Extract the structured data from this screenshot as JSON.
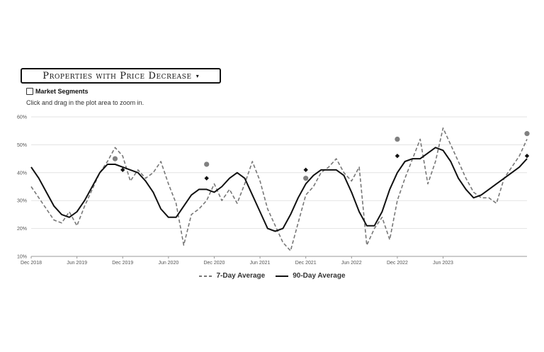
{
  "selector": {
    "label": "Properties with Price Decrease",
    "caret": "▾"
  },
  "segments": {
    "label": "Market Segments",
    "checked": false
  },
  "hint": "Click and drag in the plot area to zoom in.",
  "chart_data": {
    "type": "line",
    "title": "",
    "xlabel": "",
    "ylabel": "",
    "ylim": [
      10,
      60
    ],
    "yticks": [
      "10%",
      "20%",
      "30%",
      "40%",
      "50%",
      "60%"
    ],
    "xlim": [
      "2018-12",
      "2024-01"
    ],
    "xticks": [
      "Dec 2018",
      "Jun 2019",
      "Dec 2019",
      "Jun 2020",
      "Dec 2020",
      "Jun 2021",
      "Dec 2021",
      "Jun 2022",
      "Dec 2022",
      "Jun 2023"
    ],
    "grid": true,
    "legend_position": "bottom-center",
    "series": [
      {
        "name": "7-Day Average",
        "style": "dashed",
        "color": "#777777",
        "points": [
          [
            "2018-12",
            35
          ],
          [
            "2019-01",
            31
          ],
          [
            "2019-02",
            27
          ],
          [
            "2019-03",
            23
          ],
          [
            "2019-04",
            22
          ],
          [
            "2019-05",
            26
          ],
          [
            "2019-06",
            21
          ],
          [
            "2019-07",
            28
          ],
          [
            "2019-08",
            34
          ],
          [
            "2019-09",
            40
          ],
          [
            "2019-10",
            44
          ],
          [
            "2019-11",
            49
          ],
          [
            "2019-12",
            46
          ],
          [
            "2020-01",
            37
          ],
          [
            "2020-02",
            41
          ],
          [
            "2020-03",
            38
          ],
          [
            "2020-04",
            40
          ],
          [
            "2020-05",
            44
          ],
          [
            "2020-06",
            36
          ],
          [
            "2020-07",
            29
          ],
          [
            "2020-08",
            14
          ],
          [
            "2020-09",
            25
          ],
          [
            "2020-10",
            27
          ],
          [
            "2020-11",
            30
          ],
          [
            "2020-12",
            36
          ],
          [
            "2021-01",
            30
          ],
          [
            "2021-02",
            34
          ],
          [
            "2021-03",
            29
          ],
          [
            "2021-04",
            36
          ],
          [
            "2021-05",
            44
          ],
          [
            "2021-06",
            37
          ],
          [
            "2021-07",
            27
          ],
          [
            "2021-08",
            21
          ],
          [
            "2021-09",
            15
          ],
          [
            "2021-10",
            12
          ],
          [
            "2021-11",
            22
          ],
          [
            "2021-12",
            32
          ],
          [
            "2022-01",
            35
          ],
          [
            "2022-02",
            40
          ],
          [
            "2022-03",
            42
          ],
          [
            "2022-04",
            45
          ],
          [
            "2022-05",
            40
          ],
          [
            "2022-06",
            37
          ],
          [
            "2022-07",
            42
          ],
          [
            "2022-08",
            14
          ],
          [
            "2022-09",
            20
          ],
          [
            "2022-10",
            24
          ],
          [
            "2022-11",
            16
          ],
          [
            "2022-12",
            30
          ],
          [
            "2023-01",
            38
          ],
          [
            "2023-02",
            45
          ],
          [
            "2023-03",
            52
          ],
          [
            "2023-04",
            36
          ],
          [
            "2023-05",
            44
          ],
          [
            "2023-06",
            56
          ],
          [
            "2023-07",
            50
          ],
          [
            "2023-08",
            44
          ],
          [
            "2023-09",
            38
          ],
          [
            "2023-10",
            33
          ],
          [
            "2023-11",
            31
          ],
          [
            "2023-12",
            31
          ],
          [
            "2024-01",
            29
          ],
          [
            "2024-02",
            38
          ],
          [
            "2024-03",
            42
          ],
          [
            "2024-04",
            46
          ],
          [
            "2024-05",
            52
          ]
        ]
      },
      {
        "name": "90-Day Average",
        "style": "solid",
        "color": "#111111",
        "points": [
          [
            "2018-12",
            42
          ],
          [
            "2019-01",
            38
          ],
          [
            "2019-02",
            33
          ],
          [
            "2019-03",
            28
          ],
          [
            "2019-04",
            25
          ],
          [
            "2019-05",
            24
          ],
          [
            "2019-06",
            26
          ],
          [
            "2019-07",
            30
          ],
          [
            "2019-08",
            35
          ],
          [
            "2019-09",
            40
          ],
          [
            "2019-10",
            43
          ],
          [
            "2019-11",
            43
          ],
          [
            "2019-12",
            42
          ],
          [
            "2020-01",
            41
          ],
          [
            "2020-02",
            40
          ],
          [
            "2020-03",
            37
          ],
          [
            "2020-04",
            33
          ],
          [
            "2020-05",
            27
          ],
          [
            "2020-06",
            24
          ],
          [
            "2020-07",
            24
          ],
          [
            "2020-08",
            28
          ],
          [
            "2020-09",
            32
          ],
          [
            "2020-10",
            34
          ],
          [
            "2020-11",
            34
          ],
          [
            "2020-12",
            33
          ],
          [
            "2021-01",
            35
          ],
          [
            "2021-02",
            38
          ],
          [
            "2021-03",
            40
          ],
          [
            "2021-04",
            38
          ],
          [
            "2021-05",
            32
          ],
          [
            "2021-06",
            26
          ],
          [
            "2021-07",
            20
          ],
          [
            "2021-08",
            19
          ],
          [
            "2021-09",
            20
          ],
          [
            "2021-10",
            25
          ],
          [
            "2021-11",
            31
          ],
          [
            "2021-12",
            36
          ],
          [
            "2022-01",
            39
          ],
          [
            "2022-02",
            41
          ],
          [
            "2022-03",
            41
          ],
          [
            "2022-04",
            41
          ],
          [
            "2022-05",
            39
          ],
          [
            "2022-06",
            33
          ],
          [
            "2022-07",
            26
          ],
          [
            "2022-08",
            21
          ],
          [
            "2022-09",
            21
          ],
          [
            "2022-10",
            26
          ],
          [
            "2022-11",
            34
          ],
          [
            "2022-12",
            40
          ],
          [
            "2023-01",
            44
          ],
          [
            "2023-02",
            45
          ],
          [
            "2023-03",
            45
          ],
          [
            "2023-04",
            47
          ],
          [
            "2023-05",
            49
          ],
          [
            "2023-06",
            48
          ],
          [
            "2023-07",
            44
          ],
          [
            "2023-08",
            38
          ],
          [
            "2023-09",
            34
          ],
          [
            "2023-10",
            31
          ],
          [
            "2023-11",
            32
          ],
          [
            "2023-12",
            34
          ],
          [
            "2024-01",
            36
          ],
          [
            "2024-02",
            38
          ],
          [
            "2024-03",
            40
          ],
          [
            "2024-04",
            42
          ],
          [
            "2024-05",
            45
          ]
        ]
      }
    ],
    "markers": {
      "seven_day": [
        [
          "2019-11",
          45
        ],
        [
          "2020-11",
          43
        ],
        [
          "2021-12",
          38
        ],
        [
          "2022-12",
          52
        ],
        [
          "2024-05",
          54
        ]
      ],
      "ninety_day": [
        [
          "2019-12",
          41
        ],
        [
          "2020-11",
          38
        ],
        [
          "2021-12",
          41
        ],
        [
          "2022-12",
          46
        ],
        [
          "2024-05",
          46
        ]
      ]
    }
  }
}
